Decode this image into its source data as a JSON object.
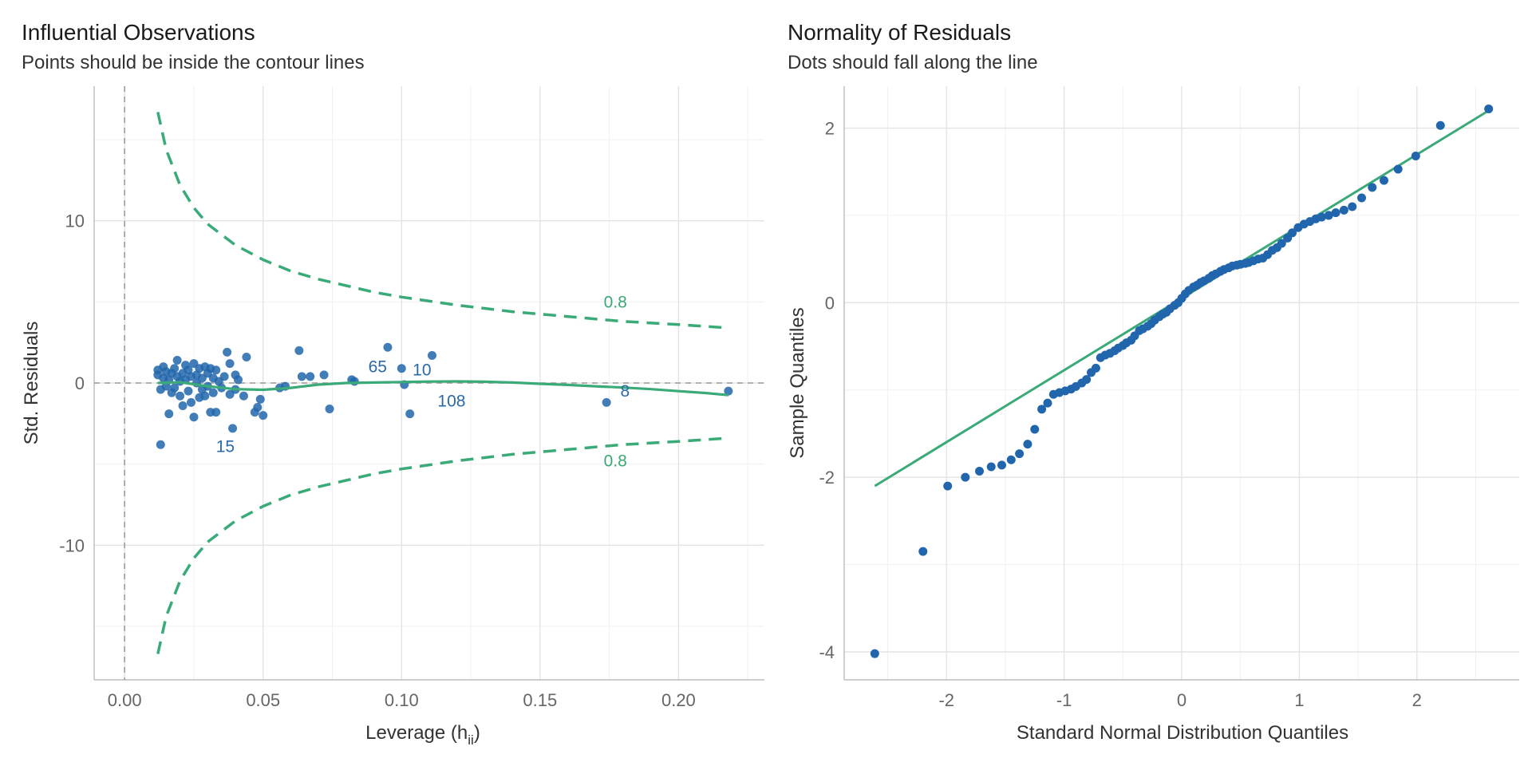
{
  "colors": {
    "point": "#2166ac",
    "line": "#3aaa78",
    "refline": "#9a9a9a"
  },
  "chart_data": [
    {
      "type": "scatter",
      "title": "Influential Observations",
      "subtitle": "Points should be inside the contour lines",
      "xlabel_main": "Leverage (h",
      "xlabel_sub": "ii",
      "xlabel_close": ")",
      "ylabel": "Std. Residuals",
      "xlim": [
        -0.011,
        0.231
      ],
      "ylim": [
        -18.3,
        18.3
      ],
      "xticks": [
        0,
        0.05,
        0.1,
        0.15,
        0.2
      ],
      "xtick_labels": [
        "0.00",
        "0.05",
        "0.10",
        "0.15",
        "0.20"
      ],
      "yticks": [
        -10,
        0,
        10
      ],
      "ytick_labels": [
        "-10",
        "0",
        "10"
      ],
      "grid": true,
      "reference_lines": {
        "x": 0,
        "y": 0
      },
      "points": [
        [
          0.012,
          0.5
        ],
        [
          0.012,
          0.8
        ],
        [
          0.013,
          -0.4
        ],
        [
          0.013,
          -3.8
        ],
        [
          0.014,
          0.3
        ],
        [
          0.014,
          1.0
        ],
        [
          0.015,
          -0.2
        ],
        [
          0.015,
          0.7
        ],
        [
          0.016,
          -1.9
        ],
        [
          0.016,
          0.2
        ],
        [
          0.017,
          0.6
        ],
        [
          0.017,
          -0.6
        ],
        [
          0.018,
          0.9
        ],
        [
          0.018,
          -0.3
        ],
        [
          0.019,
          0.4
        ],
        [
          0.019,
          1.4
        ],
        [
          0.02,
          -0.8
        ],
        [
          0.02,
          0.1
        ],
        [
          0.021,
          0.6
        ],
        [
          0.021,
          -1.4
        ],
        [
          0.022,
          1.1
        ],
        [
          0.022,
          0.2
        ],
        [
          0.023,
          -0.5
        ],
        [
          0.023,
          0.8
        ],
        [
          0.024,
          -1.2
        ],
        [
          0.024,
          0.4
        ],
        [
          0.025,
          -2.1
        ],
        [
          0.025,
          1.2
        ],
        [
          0.026,
          0.0
        ],
        [
          0.026,
          0.5
        ],
        [
          0.027,
          -0.9
        ],
        [
          0.027,
          0.9
        ],
        [
          0.028,
          -0.4
        ],
        [
          0.028,
          0.3
        ],
        [
          0.029,
          1.0
        ],
        [
          0.029,
          -0.8
        ],
        [
          0.03,
          0.6
        ],
        [
          0.03,
          -0.2
        ],
        [
          0.031,
          -1.8
        ],
        [
          0.031,
          0.9
        ],
        [
          0.032,
          0.3
        ],
        [
          0.032,
          -0.6
        ],
        [
          0.033,
          -1.8
        ],
        [
          0.033,
          0.8
        ],
        [
          0.034,
          0.1
        ],
        [
          0.035,
          -0.3
        ],
        [
          0.036,
          0.4
        ],
        [
          0.037,
          1.9
        ],
        [
          0.038,
          -0.7
        ],
        [
          0.038,
          1.2
        ],
        [
          0.039,
          -2.8
        ],
        [
          0.04,
          0.5
        ],
        [
          0.04,
          -0.4
        ],
        [
          0.041,
          0.2
        ],
        [
          0.043,
          -0.8
        ],
        [
          0.044,
          1.6
        ],
        [
          0.047,
          -1.8
        ],
        [
          0.048,
          -1.5
        ],
        [
          0.049,
          -1.0
        ],
        [
          0.05,
          -2.0
        ],
        [
          0.056,
          -0.3
        ],
        [
          0.058,
          -0.2
        ],
        [
          0.063,
          2.0
        ],
        [
          0.064,
          0.4
        ],
        [
          0.067,
          0.4
        ],
        [
          0.072,
          0.5
        ],
        [
          0.074,
          -1.6
        ],
        [
          0.082,
          0.2
        ],
        [
          0.083,
          0.1
        ],
        [
          0.095,
          2.2
        ],
        [
          0.1,
          0.9
        ],
        [
          0.101,
          -0.1
        ],
        [
          0.103,
          -1.9
        ],
        [
          0.111,
          1.7
        ],
        [
          0.174,
          -1.2
        ],
        [
          0.218,
          -0.5
        ]
      ],
      "smooth_line": [
        [
          0.012,
          0.0
        ],
        [
          0.02,
          0.05
        ],
        [
          0.03,
          -0.2
        ],
        [
          0.04,
          -0.38
        ],
        [
          0.05,
          -0.42
        ],
        [
          0.06,
          -0.3
        ],
        [
          0.07,
          -0.1
        ],
        [
          0.08,
          0.0
        ],
        [
          0.09,
          0.03
        ],
        [
          0.1,
          0.06
        ],
        [
          0.11,
          0.09
        ],
        [
          0.12,
          0.1
        ],
        [
          0.13,
          0.08
        ],
        [
          0.14,
          0.03
        ],
        [
          0.15,
          -0.05
        ],
        [
          0.16,
          -0.12
        ],
        [
          0.17,
          -0.2
        ],
        [
          0.18,
          -0.28
        ],
        [
          0.19,
          -0.38
        ],
        [
          0.2,
          -0.5
        ],
        [
          0.21,
          -0.62
        ],
        [
          0.218,
          -0.75
        ]
      ],
      "contour_upper": [
        [
          0.012,
          16.7
        ],
        [
          0.015,
          14.4
        ],
        [
          0.02,
          12.2
        ],
        [
          0.025,
          10.8
        ],
        [
          0.03,
          9.8
        ],
        [
          0.04,
          8.5
        ],
        [
          0.05,
          7.6
        ],
        [
          0.06,
          6.9
        ],
        [
          0.07,
          6.4
        ],
        [
          0.08,
          6.0
        ],
        [
          0.09,
          5.6
        ],
        [
          0.1,
          5.3
        ],
        [
          0.12,
          4.8
        ],
        [
          0.14,
          4.4
        ],
        [
          0.16,
          4.1
        ],
        [
          0.18,
          3.8
        ],
        [
          0.2,
          3.6
        ],
        [
          0.218,
          3.4
        ]
      ],
      "contour_lower": [
        [
          0.012,
          -16.7
        ],
        [
          0.015,
          -14.4
        ],
        [
          0.02,
          -12.2
        ],
        [
          0.025,
          -10.8
        ],
        [
          0.03,
          -9.8
        ],
        [
          0.04,
          -8.5
        ],
        [
          0.05,
          -7.6
        ],
        [
          0.06,
          -6.9
        ],
        [
          0.07,
          -6.4
        ],
        [
          0.08,
          -6.0
        ],
        [
          0.09,
          -5.6
        ],
        [
          0.1,
          -5.3
        ],
        [
          0.12,
          -4.8
        ],
        [
          0.14,
          -4.4
        ],
        [
          0.16,
          -4.1
        ],
        [
          0.18,
          -3.8
        ],
        [
          0.2,
          -3.6
        ],
        [
          0.218,
          -3.4
        ]
      ],
      "contour_labels": [
        {
          "text": "0.8",
          "x": 0.173,
          "y": 5.0
        },
        {
          "text": "0.8",
          "x": 0.173,
          "y": -4.8
        }
      ],
      "point_annotations": [
        {
          "text": "65",
          "x": 0.088,
          "y": 1.0
        },
        {
          "text": "10",
          "x": 0.104,
          "y": 0.8
        },
        {
          "text": "108",
          "x": 0.113,
          "y": -1.1
        },
        {
          "text": "8",
          "x": 0.179,
          "y": -0.5
        },
        {
          "text": "15",
          "x": 0.033,
          "y": -3.9
        }
      ]
    },
    {
      "type": "scatter",
      "title": "Normality of Residuals",
      "subtitle": "Dots should fall along the line",
      "xlabel": "Standard Normal Distribution Quantiles",
      "ylabel": "Sample Quantiles",
      "xlim": [
        -2.87,
        2.87
      ],
      "ylim": [
        -4.32,
        2.48
      ],
      "xticks": [
        -2,
        -1,
        0,
        1,
        2
      ],
      "xtick_labels": [
        "-2",
        "-1",
        "0",
        "1",
        "2"
      ],
      "yticks": [
        -4,
        -2,
        0,
        2
      ],
      "ytick_labels": [
        "-4",
        "-2",
        "0",
        "2"
      ],
      "grid": true,
      "reference_line": [
        [
          -2.61,
          -2.1
        ],
        [
          2.61,
          2.2
        ]
      ],
      "points": [
        [
          -2.61,
          -4.02
        ],
        [
          -2.2,
          -2.85
        ],
        [
          -1.99,
          -2.1
        ],
        [
          -1.84,
          -2.0
        ],
        [
          -1.72,
          -1.93
        ],
        [
          -1.62,
          -1.88
        ],
        [
          -1.53,
          -1.86
        ],
        [
          -1.45,
          -1.8
        ],
        [
          -1.38,
          -1.73
        ],
        [
          -1.31,
          -1.62
        ],
        [
          -1.25,
          -1.45
        ],
        [
          -1.19,
          -1.22
        ],
        [
          -1.14,
          -1.15
        ],
        [
          -1.09,
          -1.05
        ],
        [
          -1.04,
          -1.03
        ],
        [
          -0.99,
          -1.01
        ],
        [
          -0.94,
          -0.99
        ],
        [
          -0.9,
          -0.96
        ],
        [
          -0.85,
          -0.92
        ],
        [
          -0.81,
          -0.88
        ],
        [
          -0.77,
          -0.8
        ],
        [
          -0.73,
          -0.75
        ],
        [
          -0.69,
          -0.63
        ],
        [
          -0.65,
          -0.6
        ],
        [
          -0.61,
          -0.58
        ],
        [
          -0.57,
          -0.55
        ],
        [
          -0.54,
          -0.52
        ],
        [
          -0.5,
          -0.49
        ],
        [
          -0.47,
          -0.46
        ],
        [
          -0.43,
          -0.43
        ],
        [
          -0.4,
          -0.38
        ],
        [
          -0.36,
          -0.32
        ],
        [
          -0.33,
          -0.3
        ],
        [
          -0.29,
          -0.27
        ],
        [
          -0.26,
          -0.24
        ],
        [
          -0.23,
          -0.2
        ],
        [
          -0.19,
          -0.16
        ],
        [
          -0.16,
          -0.13
        ],
        [
          -0.13,
          -0.11
        ],
        [
          -0.1,
          -0.07
        ],
        [
          -0.06,
          -0.03
        ],
        [
          -0.03,
          0.0
        ],
        [
          0.0,
          0.05
        ],
        [
          0.03,
          0.1
        ],
        [
          0.06,
          0.14
        ],
        [
          0.1,
          0.18
        ],
        [
          0.13,
          0.2
        ],
        [
          0.16,
          0.23
        ],
        [
          0.19,
          0.25
        ],
        [
          0.23,
          0.28
        ],
        [
          0.26,
          0.31
        ],
        [
          0.29,
          0.33
        ],
        [
          0.33,
          0.36
        ],
        [
          0.36,
          0.38
        ],
        [
          0.4,
          0.4
        ],
        [
          0.43,
          0.42
        ],
        [
          0.47,
          0.43
        ],
        [
          0.5,
          0.44
        ],
        [
          0.54,
          0.45
        ],
        [
          0.57,
          0.46
        ],
        [
          0.61,
          0.48
        ],
        [
          0.65,
          0.5
        ],
        [
          0.69,
          0.51
        ],
        [
          0.73,
          0.55
        ],
        [
          0.77,
          0.6
        ],
        [
          0.81,
          0.63
        ],
        [
          0.85,
          0.68
        ],
        [
          0.9,
          0.74
        ],
        [
          0.94,
          0.8
        ],
        [
          0.99,
          0.86
        ],
        [
          1.04,
          0.9
        ],
        [
          1.09,
          0.93
        ],
        [
          1.14,
          0.96
        ],
        [
          1.19,
          0.98
        ],
        [
          1.25,
          1.0
        ],
        [
          1.31,
          1.03
        ],
        [
          1.38,
          1.06
        ],
        [
          1.45,
          1.1
        ],
        [
          1.53,
          1.2
        ],
        [
          1.62,
          1.32
        ],
        [
          1.72,
          1.4
        ],
        [
          1.84,
          1.53
        ],
        [
          1.99,
          1.68
        ],
        [
          2.2,
          2.03
        ],
        [
          2.61,
          2.22
        ]
      ]
    }
  ]
}
